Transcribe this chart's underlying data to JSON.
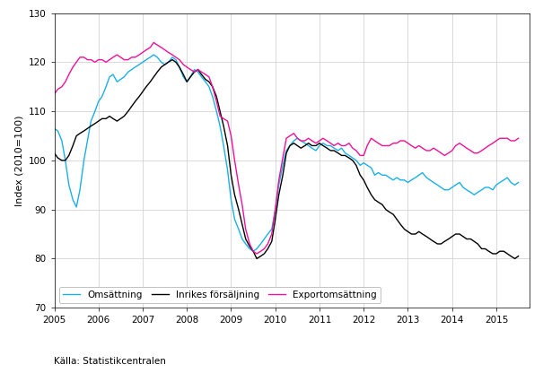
{
  "title": "",
  "ylabel": "Index (2010=100)",
  "source": "Källa: Statistikcentralen",
  "ylim": [
    70,
    130
  ],
  "xlim": [
    2005.0,
    2015.75
  ],
  "yticks": [
    70,
    80,
    90,
    100,
    110,
    120,
    130
  ],
  "xtick_years": [
    2005,
    2006,
    2007,
    2008,
    2009,
    2010,
    2011,
    2012,
    2013,
    2014,
    2015
  ],
  "legend_labels": [
    "Omsättning",
    "Inrikes försäljning",
    "Exportomsättning"
  ],
  "colors": [
    "#1ab0e8",
    "#000000",
    "#ee1199"
  ],
  "omsattning": [
    2005.0,
    106.5,
    2005.08,
    106.0,
    2005.17,
    104.0,
    2005.25,
    100.0,
    2005.33,
    95.0,
    2005.42,
    92.0,
    2005.5,
    90.5,
    2005.58,
    94.0,
    2005.67,
    100.0,
    2005.75,
    104.0,
    2005.83,
    108.0,
    2005.92,
    110.0,
    2006.0,
    112.0,
    2006.08,
    113.0,
    2006.17,
    115.0,
    2006.25,
    117.0,
    2006.33,
    117.5,
    2006.42,
    116.0,
    2006.5,
    116.5,
    2006.58,
    117.0,
    2006.67,
    118.0,
    2006.75,
    118.5,
    2006.83,
    119.0,
    2006.92,
    119.5,
    2007.0,
    120.0,
    2007.08,
    120.5,
    2007.17,
    121.0,
    2007.25,
    121.5,
    2007.33,
    121.0,
    2007.42,
    120.0,
    2007.5,
    119.5,
    2007.58,
    120.0,
    2007.67,
    121.0,
    2007.75,
    120.5,
    2007.83,
    119.0,
    2007.92,
    117.0,
    2008.0,
    116.0,
    2008.08,
    117.0,
    2008.17,
    118.5,
    2008.25,
    118.0,
    2008.33,
    117.0,
    2008.42,
    116.0,
    2008.5,
    115.0,
    2008.58,
    113.0,
    2008.67,
    110.0,
    2008.75,
    107.0,
    2008.83,
    103.0,
    2008.92,
    98.0,
    2009.0,
    92.0,
    2009.08,
    88.0,
    2009.17,
    86.0,
    2009.25,
    84.0,
    2009.33,
    83.0,
    2009.42,
    82.0,
    2009.5,
    81.5,
    2009.58,
    82.0,
    2009.67,
    83.0,
    2009.75,
    84.0,
    2009.83,
    85.0,
    2009.92,
    86.0,
    2010.0,
    90.0,
    2010.08,
    95.0,
    2010.17,
    99.0,
    2010.25,
    102.0,
    2010.33,
    103.0,
    2010.42,
    104.0,
    2010.5,
    104.5,
    2010.58,
    104.0,
    2010.67,
    103.5,
    2010.75,
    103.0,
    2010.83,
    102.5,
    2010.92,
    102.0,
    2011.0,
    103.0,
    2011.08,
    103.5,
    2011.17,
    103.0,
    2011.25,
    103.0,
    2011.33,
    102.5,
    2011.42,
    102.0,
    2011.5,
    102.5,
    2011.58,
    101.5,
    2011.67,
    101.0,
    2011.75,
    100.5,
    2011.83,
    100.0,
    2011.92,
    99.0,
    2012.0,
    99.5,
    2012.08,
    99.0,
    2012.17,
    98.5,
    2012.25,
    97.0,
    2012.33,
    97.5,
    2012.42,
    97.0,
    2012.5,
    97.0,
    2012.58,
    96.5,
    2012.67,
    96.0,
    2012.75,
    96.5,
    2012.83,
    96.0,
    2012.92,
    96.0,
    2013.0,
    95.5,
    2013.08,
    96.0,
    2013.17,
    96.5,
    2013.25,
    97.0,
    2013.33,
    97.5,
    2013.42,
    96.5,
    2013.5,
    96.0,
    2013.58,
    95.5,
    2013.67,
    95.0,
    2013.75,
    94.5,
    2013.83,
    94.0,
    2013.92,
    94.0,
    2014.0,
    94.5,
    2014.08,
    95.0,
    2014.17,
    95.5,
    2014.25,
    94.5,
    2014.33,
    94.0,
    2014.42,
    93.5,
    2014.5,
    93.0,
    2014.58,
    93.5,
    2014.67,
    94.0,
    2014.75,
    94.5,
    2014.83,
    94.5,
    2014.92,
    94.0,
    2015.0,
    95.0,
    2015.08,
    95.5,
    2015.17,
    96.0,
    2015.25,
    96.5,
    2015.33,
    95.5,
    2015.42,
    95.0,
    2015.5,
    95.5
  ],
  "inrikes": [
    2005.0,
    101.5,
    2005.08,
    100.5,
    2005.17,
    100.0,
    2005.25,
    100.0,
    2005.33,
    101.0,
    2005.42,
    103.0,
    2005.5,
    105.0,
    2005.58,
    105.5,
    2005.67,
    106.0,
    2005.75,
    106.5,
    2005.83,
    107.0,
    2005.92,
    107.5,
    2006.0,
    108.0,
    2006.08,
    108.5,
    2006.17,
    108.5,
    2006.25,
    109.0,
    2006.33,
    108.5,
    2006.42,
    108.0,
    2006.5,
    108.5,
    2006.58,
    109.0,
    2006.67,
    110.0,
    2006.75,
    111.0,
    2006.83,
    112.0,
    2006.92,
    113.0,
    2007.0,
    114.0,
    2007.08,
    115.0,
    2007.17,
    116.0,
    2007.25,
    117.0,
    2007.33,
    118.0,
    2007.42,
    119.0,
    2007.5,
    119.5,
    2007.58,
    120.0,
    2007.67,
    120.5,
    2007.75,
    120.0,
    2007.83,
    119.0,
    2007.92,
    117.5,
    2008.0,
    116.0,
    2008.08,
    117.0,
    2008.17,
    118.0,
    2008.25,
    118.5,
    2008.33,
    117.5,
    2008.42,
    116.5,
    2008.5,
    116.0,
    2008.58,
    115.0,
    2008.67,
    113.0,
    2008.75,
    110.0,
    2008.83,
    107.0,
    2008.92,
    103.0,
    2009.0,
    97.0,
    2009.08,
    93.0,
    2009.17,
    90.0,
    2009.25,
    87.0,
    2009.33,
    84.0,
    2009.42,
    82.5,
    2009.5,
    81.5,
    2009.58,
    80.0,
    2009.67,
    80.5,
    2009.75,
    81.0,
    2009.83,
    82.0,
    2009.92,
    83.5,
    2010.0,
    88.0,
    2010.08,
    93.0,
    2010.17,
    97.0,
    2010.25,
    101.5,
    2010.33,
    103.0,
    2010.42,
    103.5,
    2010.5,
    103.0,
    2010.58,
    102.5,
    2010.67,
    103.0,
    2010.75,
    103.5,
    2010.83,
    103.0,
    2010.92,
    103.0,
    2011.0,
    103.5,
    2011.08,
    103.0,
    2011.17,
    102.5,
    2011.25,
    102.0,
    2011.33,
    102.0,
    2011.42,
    101.5,
    2011.5,
    101.0,
    2011.58,
    101.0,
    2011.67,
    100.5,
    2011.75,
    100.0,
    2011.83,
    99.0,
    2011.92,
    97.0,
    2012.0,
    96.0,
    2012.08,
    94.5,
    2012.17,
    93.0,
    2012.25,
    92.0,
    2012.33,
    91.5,
    2012.42,
    91.0,
    2012.5,
    90.0,
    2012.58,
    89.5,
    2012.67,
    89.0,
    2012.75,
    88.0,
    2012.83,
    87.0,
    2012.92,
    86.0,
    2013.0,
    85.5,
    2013.08,
    85.0,
    2013.17,
    85.0,
    2013.25,
    85.5,
    2013.33,
    85.0,
    2013.42,
    84.5,
    2013.5,
    84.0,
    2013.58,
    83.5,
    2013.67,
    83.0,
    2013.75,
    83.0,
    2013.83,
    83.5,
    2013.92,
    84.0,
    2014.0,
    84.5,
    2014.08,
    85.0,
    2014.17,
    85.0,
    2014.25,
    84.5,
    2014.33,
    84.0,
    2014.42,
    84.0,
    2014.5,
    83.5,
    2014.58,
    83.0,
    2014.67,
    82.0,
    2014.75,
    82.0,
    2014.83,
    81.5,
    2014.92,
    81.0,
    2015.0,
    81.0,
    2015.08,
    81.5,
    2015.17,
    81.5,
    2015.25,
    81.0,
    2015.33,
    80.5,
    2015.42,
    80.0,
    2015.5,
    80.5
  ],
  "export": [
    2005.0,
    113.5,
    2005.08,
    114.5,
    2005.17,
    115.0,
    2005.25,
    116.0,
    2005.33,
    117.5,
    2005.42,
    119.0,
    2005.5,
    120.0,
    2005.58,
    121.0,
    2005.67,
    121.0,
    2005.75,
    120.5,
    2005.83,
    120.5,
    2005.92,
    120.0,
    2006.0,
    120.5,
    2006.08,
    120.5,
    2006.17,
    120.0,
    2006.25,
    120.5,
    2006.33,
    121.0,
    2006.42,
    121.5,
    2006.5,
    121.0,
    2006.58,
    120.5,
    2006.67,
    120.5,
    2006.75,
    121.0,
    2006.83,
    121.0,
    2006.92,
    121.5,
    2007.0,
    122.0,
    2007.08,
    122.5,
    2007.17,
    123.0,
    2007.25,
    124.0,
    2007.33,
    123.5,
    2007.42,
    123.0,
    2007.5,
    122.5,
    2007.58,
    122.0,
    2007.67,
    121.5,
    2007.75,
    121.0,
    2007.83,
    120.5,
    2007.92,
    119.5,
    2008.0,
    119.0,
    2008.08,
    118.5,
    2008.17,
    118.0,
    2008.25,
    118.5,
    2008.33,
    118.0,
    2008.42,
    117.5,
    2008.5,
    117.0,
    2008.58,
    115.0,
    2008.67,
    112.0,
    2008.75,
    109.0,
    2008.83,
    108.5,
    2008.92,
    108.0,
    2009.0,
    105.0,
    2009.08,
    100.0,
    2009.17,
    95.0,
    2009.25,
    91.0,
    2009.33,
    86.0,
    2009.42,
    83.0,
    2009.5,
    81.5,
    2009.58,
    81.0,
    2009.67,
    81.5,
    2009.75,
    82.0,
    2009.83,
    83.0,
    2009.92,
    85.0,
    2010.0,
    90.0,
    2010.08,
    96.0,
    2010.17,
    100.5,
    2010.25,
    104.5,
    2010.33,
    105.0,
    2010.42,
    105.5,
    2010.5,
    104.5,
    2010.58,
    104.0,
    2010.67,
    104.0,
    2010.75,
    104.5,
    2010.83,
    104.0,
    2010.92,
    103.5,
    2011.0,
    104.0,
    2011.08,
    104.5,
    2011.17,
    104.0,
    2011.25,
    103.5,
    2011.33,
    103.0,
    2011.42,
    103.5,
    2011.5,
    103.0,
    2011.58,
    103.0,
    2011.67,
    103.5,
    2011.75,
    102.5,
    2011.83,
    102.0,
    2011.92,
    101.0,
    2012.0,
    101.0,
    2012.08,
    103.0,
    2012.17,
    104.5,
    2012.25,
    104.0,
    2012.33,
    103.5,
    2012.42,
    103.0,
    2012.5,
    103.0,
    2012.58,
    103.0,
    2012.67,
    103.5,
    2012.75,
    103.5,
    2012.83,
    104.0,
    2012.92,
    104.0,
    2013.0,
    103.5,
    2013.08,
    103.0,
    2013.17,
    102.5,
    2013.25,
    103.0,
    2013.33,
    102.5,
    2013.42,
    102.0,
    2013.5,
    102.0,
    2013.58,
    102.5,
    2013.67,
    102.0,
    2013.75,
    101.5,
    2013.83,
    101.0,
    2013.92,
    101.5,
    2014.0,
    102.0,
    2014.08,
    103.0,
    2014.17,
    103.5,
    2014.25,
    103.0,
    2014.33,
    102.5,
    2014.42,
    102.0,
    2014.5,
    101.5,
    2014.58,
    101.5,
    2014.67,
    102.0,
    2014.75,
    102.5,
    2014.83,
    103.0,
    2014.92,
    103.5,
    2015.0,
    104.0,
    2015.08,
    104.5,
    2015.17,
    104.5,
    2015.25,
    104.5,
    2015.33,
    104.0,
    2015.42,
    104.0,
    2015.5,
    104.5
  ],
  "fig_width": 6.05,
  "fig_height": 4.16,
  "dpi": 100,
  "linewidth": 1.0,
  "grid_color": "#cccccc",
  "grid_lw": 0.5,
  "tick_fontsize": 7.5,
  "ylabel_fontsize": 8,
  "legend_fontsize": 7.5,
  "source_fontsize": 7.5,
  "bg_color": "#ffffff"
}
